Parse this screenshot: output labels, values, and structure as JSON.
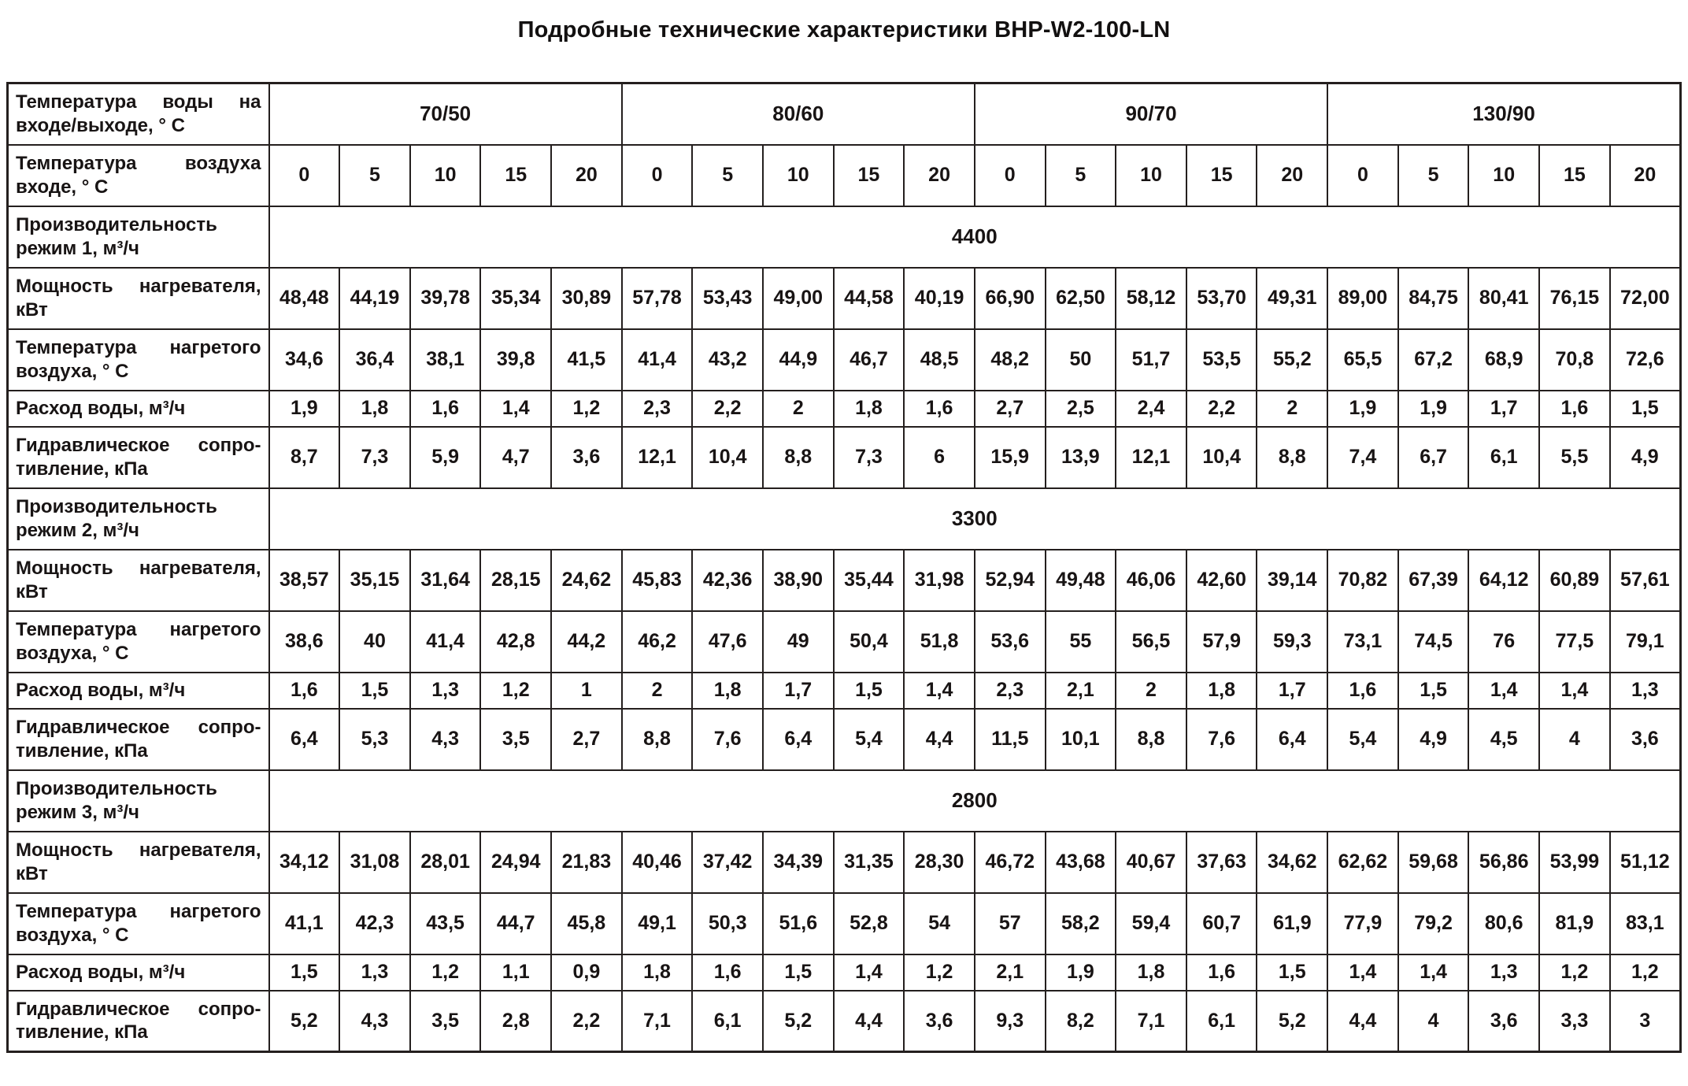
{
  "title": "Подробные технические характеристики BHP-W2-100-LN",
  "table": {
    "water_temp_header": {
      "label": "Температура воды на входе/выходе, ° С",
      "groups": [
        "70/50",
        "80/60",
        "90/70",
        "130/90"
      ]
    },
    "air_temp_header": {
      "label": "Температура воздуха входе, ° С",
      "values": [
        "0",
        "5",
        "10",
        "15",
        "20",
        "0",
        "5",
        "10",
        "15",
        "20",
        "0",
        "5",
        "10",
        "15",
        "20",
        "0",
        "5",
        "10",
        "15",
        "20"
      ]
    },
    "sections": [
      {
        "capacity_label": "Производительность режим 1, м³/ч",
        "capacity_value": "4400",
        "rows": [
          {
            "label": "Мощность нагревателя, кВт",
            "values": [
              "48,48",
              "44,19",
              "39,78",
              "35,34",
              "30,89",
              "57,78",
              "53,43",
              "49,00",
              "44,58",
              "40,19",
              "66,90",
              "62,50",
              "58,12",
              "53,70",
              "49,31",
              "89,00",
              "84,75",
              "80,41",
              "76,15",
              "72,00"
            ]
          },
          {
            "label": "Температура нагретого воздуха, ° С",
            "values": [
              "34,6",
              "36,4",
              "38,1",
              "39,8",
              "41,5",
              "41,4",
              "43,2",
              "44,9",
              "46,7",
              "48,5",
              "48,2",
              "50",
              "51,7",
              "53,5",
              "55,2",
              "65,5",
              "67,2",
              "68,9",
              "70,8",
              "72,6"
            ]
          },
          {
            "label": "Расход воды, м³/ч",
            "values": [
              "1,9",
              "1,8",
              "1,6",
              "1,4",
              "1,2",
              "2,3",
              "2,2",
              "2",
              "1,8",
              "1,6",
              "2,7",
              "2,5",
              "2,4",
              "2,2",
              "2",
              "1,9",
              "1,9",
              "1,7",
              "1,6",
              "1,5"
            ]
          },
          {
            "label": "Гидравлическое сопро-тивление, кПа",
            "values": [
              "8,7",
              "7,3",
              "5,9",
              "4,7",
              "3,6",
              "12,1",
              "10,4",
              "8,8",
              "7,3",
              "6",
              "15,9",
              "13,9",
              "12,1",
              "10,4",
              "8,8",
              "7,4",
              "6,7",
              "6,1",
              "5,5",
              "4,9"
            ]
          }
        ]
      },
      {
        "capacity_label": "Производительность режим 2, м³/ч",
        "capacity_value": "3300",
        "rows": [
          {
            "label": "Мощность нагревателя, кВт",
            "values": [
              "38,57",
              "35,15",
              "31,64",
              "28,15",
              "24,62",
              "45,83",
              "42,36",
              "38,90",
              "35,44",
              "31,98",
              "52,94",
              "49,48",
              "46,06",
              "42,60",
              "39,14",
              "70,82",
              "67,39",
              "64,12",
              "60,89",
              "57,61"
            ]
          },
          {
            "label": "Температура нагретого воздуха, ° С",
            "values": [
              "38,6",
              "40",
              "41,4",
              "42,8",
              "44,2",
              "46,2",
              "47,6",
              "49",
              "50,4",
              "51,8",
              "53,6",
              "55",
              "56,5",
              "57,9",
              "59,3",
              "73,1",
              "74,5",
              "76",
              "77,5",
              "79,1"
            ]
          },
          {
            "label": "Расход воды, м³/ч",
            "values": [
              "1,6",
              "1,5",
              "1,3",
              "1,2",
              "1",
              "2",
              "1,8",
              "1,7",
              "1,5",
              "1,4",
              "2,3",
              "2,1",
              "2",
              "1,8",
              "1,7",
              "1,6",
              "1,5",
              "1,4",
              "1,4",
              "1,3"
            ]
          },
          {
            "label": "Гидравлическое сопро-тивление, кПа",
            "values": [
              "6,4",
              "5,3",
              "4,3",
              "3,5",
              "2,7",
              "8,8",
              "7,6",
              "6,4",
              "5,4",
              "4,4",
              "11,5",
              "10,1",
              "8,8",
              "7,6",
              "6,4",
              "5,4",
              "4,9",
              "4,5",
              "4",
              "3,6"
            ]
          }
        ]
      },
      {
        "capacity_label": "Производительность режим 3, м³/ч",
        "capacity_value": "2800",
        "rows": [
          {
            "label": "Мощность нагревателя, кВт",
            "values": [
              "34,12",
              "31,08",
              "28,01",
              "24,94",
              "21,83",
              "40,46",
              "37,42",
              "34,39",
              "31,35",
              "28,30",
              "46,72",
              "43,68",
              "40,67",
              "37,63",
              "34,62",
              "62,62",
              "59,68",
              "56,86",
              "53,99",
              "51,12"
            ]
          },
          {
            "label": "Температура нагретого воздуха, ° С",
            "values": [
              "41,1",
              "42,3",
              "43,5",
              "44,7",
              "45,8",
              "49,1",
              "50,3",
              "51,6",
              "52,8",
              "54",
              "57",
              "58,2",
              "59,4",
              "60,7",
              "61,9",
              "77,9",
              "79,2",
              "80,6",
              "81,9",
              "83,1"
            ]
          },
          {
            "label": "Расход воды, м³/ч",
            "values": [
              "1,5",
              "1,3",
              "1,2",
              "1,1",
              "0,9",
              "1,8",
              "1,6",
              "1,5",
              "1,4",
              "1,2",
              "2,1",
              "1,9",
              "1,8",
              "1,6",
              "1,5",
              "1,4",
              "1,4",
              "1,3",
              "1,2",
              "1,2"
            ]
          },
          {
            "label": "Гидравлическое сопро-тивление, кПа",
            "values": [
              "5,2",
              "4,3",
              "3,5",
              "2,8",
              "2,2",
              "7,1",
              "6,1",
              "5,2",
              "4,4",
              "3,6",
              "9,3",
              "8,2",
              "7,1",
              "6,1",
              "5,2",
              "4,4",
              "4",
              "3,6",
              "3,3",
              "3"
            ]
          }
        ]
      }
    ]
  }
}
